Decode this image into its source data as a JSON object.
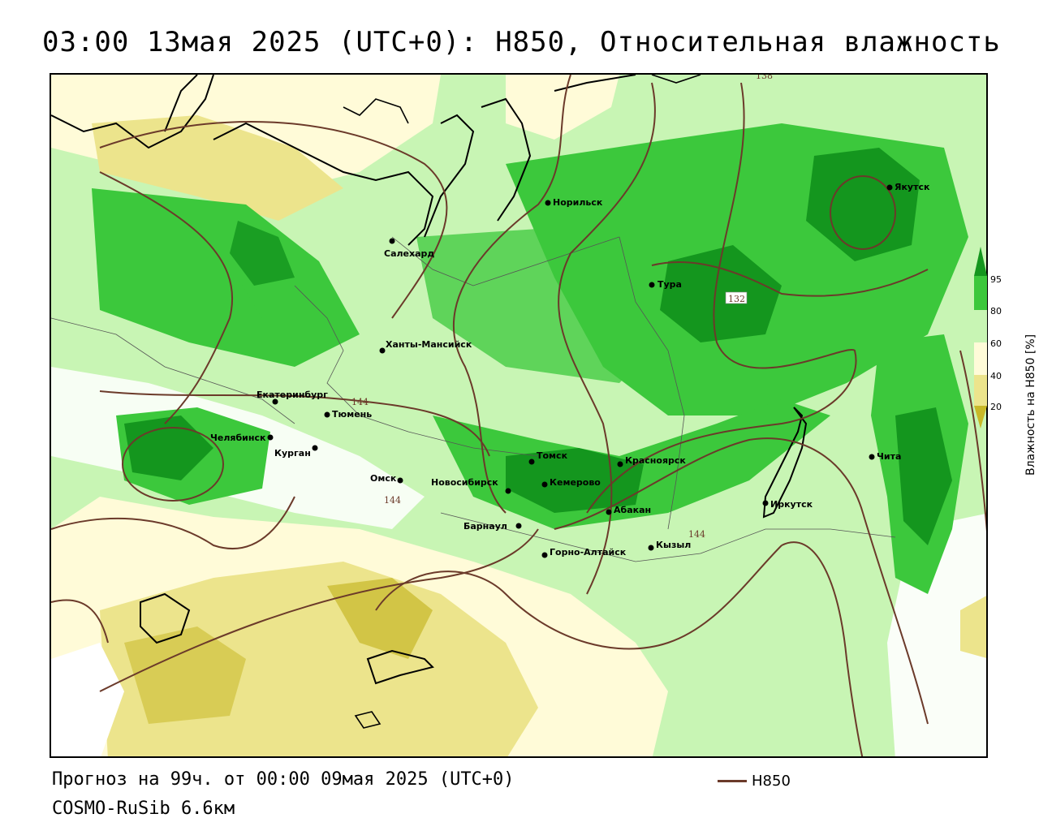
{
  "title": "03:00 13мая 2025 (UTC+0): H850, Относительная влажность",
  "forecast_text": "Прогноз на 99ч. от 00:00 09мая 2025 (UTC+0)",
  "model_text": "COSMO-RuSib 6.6км",
  "line_legend": {
    "label": "H850",
    "color": "#6b3a2a"
  },
  "colorbar": {
    "title": "Влажность на H850 [%]",
    "ticks": [
      "20",
      "40",
      "60",
      "80",
      "95"
    ],
    "colors": {
      "lt20": "#c8b828",
      "20_40": "#ece48c",
      "40_60": "#fffbd8",
      "60_80": "#c8f5b4",
      "80_95": "#3cc83c",
      "gt95": "#14961e"
    }
  },
  "cities": [
    {
      "name": "Якутск"
    },
    {
      "name": "Норильск"
    },
    {
      "name": "Салехард"
    },
    {
      "name": "Тура"
    },
    {
      "name": "Ханты-Мансийск"
    },
    {
      "name": "Екатеринбург"
    },
    {
      "name": "Тюмень"
    },
    {
      "name": "Челябинск"
    },
    {
      "name": "Курган"
    },
    {
      "name": "Омск"
    },
    {
      "name": "Новосибирск"
    },
    {
      "name": "Томск"
    },
    {
      "name": "Кемерово"
    },
    {
      "name": "Красноярск"
    },
    {
      "name": "Абакан"
    },
    {
      "name": "Барнаул"
    },
    {
      "name": "Горно-Алтайск"
    },
    {
      "name": "Кызыл"
    },
    {
      "name": "Иркутск"
    },
    {
      "name": "Чита"
    }
  ],
  "isoline_labels": [
    "144",
    "144",
    "144",
    "138",
    "132"
  ]
}
